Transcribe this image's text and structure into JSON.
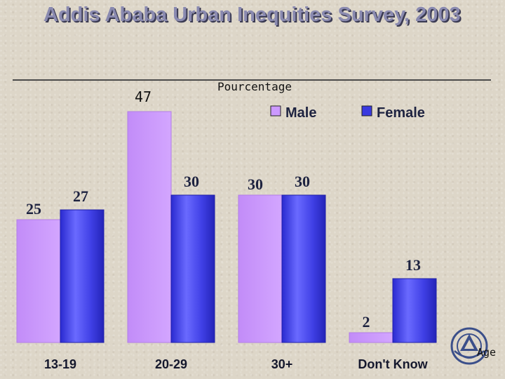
{
  "slide": {
    "title": "Addis Ababa Urban Inequities Survey, 2003"
  },
  "chart_data": {
    "type": "bar",
    "categories": [
      "13-19",
      "20-29",
      "30+",
      "Don't Know"
    ],
    "series": [
      {
        "name": "Male",
        "values": [
          25,
          47,
          30,
          2
        ],
        "color": "#cc99ff"
      },
      {
        "name": "Female",
        "values": [
          27,
          30,
          30,
          13
        ],
        "color": "#4a4ae8"
      }
    ],
    "ylabel": "Pourcentage",
    "xlabel": "Age",
    "legend": "top-right",
    "ylim": [
      0,
      47
    ],
    "grid": false
  }
}
